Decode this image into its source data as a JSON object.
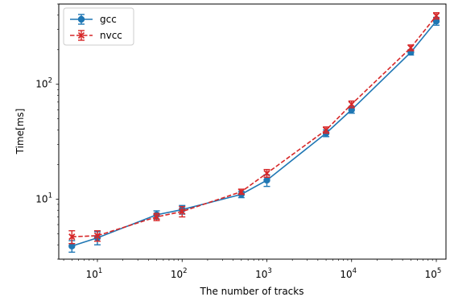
{
  "chart_data": {
    "type": "line",
    "title": "",
    "xlabel": "The number of tracks",
    "ylabel": "Time[ms]",
    "xscale": "log",
    "yscale": "log",
    "xlim": [
      3.5,
      130000
    ],
    "ylim": [
      3.0,
      500
    ],
    "grid": false,
    "legend_position": "top-left",
    "x_ticks": [
      {
        "value": 10,
        "base": "10",
        "exp": "1"
      },
      {
        "value": 100,
        "base": "10",
        "exp": "2"
      },
      {
        "value": 1000,
        "base": "10",
        "exp": "3"
      },
      {
        "value": 10000,
        "base": "10",
        "exp": "4"
      },
      {
        "value": 100000,
        "base": "10",
        "exp": "5"
      }
    ],
    "y_ticks": [
      {
        "value": 10,
        "base": "10",
        "exp": "1"
      },
      {
        "value": 100,
        "base": "10",
        "exp": "2"
      }
    ],
    "series": [
      {
        "name": "gcc",
        "color": "#1f77b4",
        "linestyle": "solid",
        "marker": "circle",
        "x": [
          5,
          10,
          50,
          100,
          500,
          1000,
          5000,
          10000,
          50000,
          100000
        ],
        "y": [
          3.9,
          4.6,
          7.3,
          8.1,
          11.0,
          14.6,
          37.5,
          60.0,
          190.0,
          355.0
        ],
        "yerr": [
          0.45,
          0.6,
          0.6,
          0.7,
          0.7,
          1.7,
          2.5,
          4.0,
          10.0,
          28.0
        ]
      },
      {
        "name": "nvcc",
        "color": "#d62728",
        "linestyle": "dashed",
        "marker": "x",
        "x": [
          5,
          10,
          50,
          100,
          500,
          1000,
          5000,
          10000,
          50000,
          100000
        ],
        "y": [
          4.7,
          4.8,
          7.0,
          7.8,
          11.6,
          16.8,
          40.0,
          67.0,
          208.0,
          395.0
        ],
        "yerr": [
          0.6,
          0.5,
          0.5,
          0.8,
          0.6,
          1.3,
          2.5,
          4.5,
          12.0,
          25.0
        ]
      }
    ]
  }
}
